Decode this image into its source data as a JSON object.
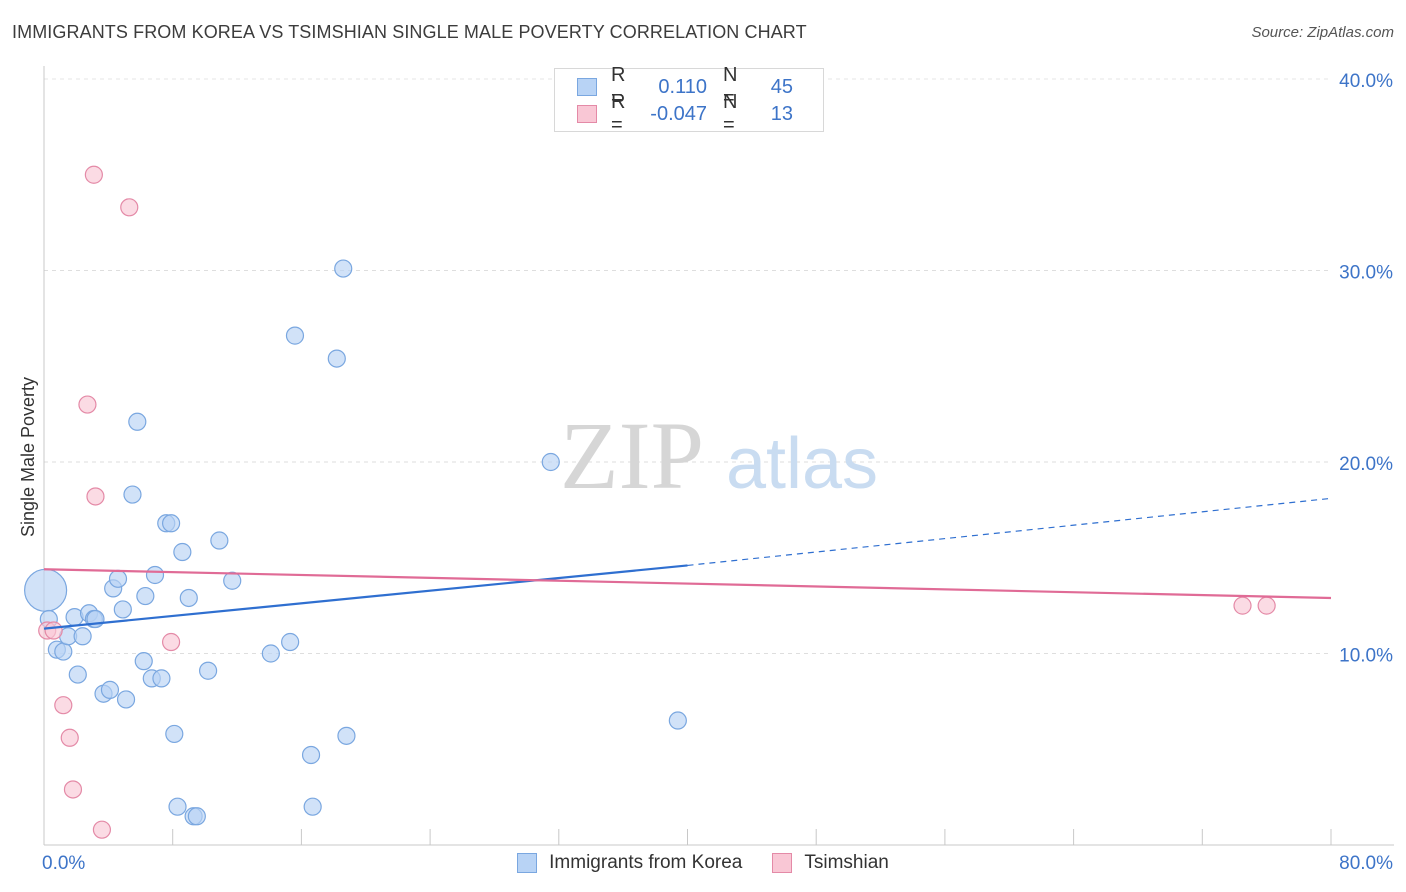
{
  "header": {
    "title": "IMMIGRANTS FROM KOREA VS TSIMSHIAN SINGLE MALE POVERTY CORRELATION CHART",
    "source": "Source: ZipAtlas.com"
  },
  "watermark": {
    "part1": "ZIP",
    "part2": "atlas"
  },
  "legend": {
    "rows": [
      {
        "r_label": "R =",
        "r_value": "0.110",
        "n_label": "N =",
        "n_value": "45",
        "color": "#b8d3f5",
        "border": "#7aa7e0"
      },
      {
        "r_label": "R =",
        "r_value": "-0.047",
        "n_label": "N =",
        "n_value": "13",
        "color": "#f9c7d5",
        "border": "#e48aa7"
      }
    ]
  },
  "chart_data": {
    "type": "scatter",
    "title": "IMMIGRANTS FROM KOREA VS TSIMSHIAN SINGLE MALE POVERTY CORRELATION CHART",
    "xlabel": "",
    "ylabel": "Single Male Poverty",
    "xlim": [
      0,
      80
    ],
    "ylim": [
      0,
      40
    ],
    "x_tick_labels": [
      "0.0%",
      "80.0%"
    ],
    "y_ticks": [
      10,
      20,
      30,
      40
    ],
    "y_tick_labels": [
      "10.0%",
      "20.0%",
      "30.0%",
      "40.0%"
    ],
    "grid": true,
    "series": [
      {
        "name": "Immigrants from Korea",
        "color": "#b8d3f5",
        "stroke": "#7aa7e0",
        "line_color": "#2f6fd0",
        "trend": {
          "x_start": 0,
          "y_start": 11.3,
          "x_solid_end": 40,
          "y_solid_end": 14.6,
          "x_end": 80,
          "y_end": 18.1
        },
        "points": [
          {
            "x": 0.1,
            "y": 13.3,
            "big": true
          },
          {
            "x": 0.3,
            "y": 11.8
          },
          {
            "x": 0.8,
            "y": 10.2
          },
          {
            "x": 1.2,
            "y": 10.1
          },
          {
            "x": 1.5,
            "y": 10.9
          },
          {
            "x": 1.9,
            "y": 11.9
          },
          {
            "x": 2.1,
            "y": 8.9
          },
          {
            "x": 2.4,
            "y": 10.9
          },
          {
            "x": 2.8,
            "y": 12.1
          },
          {
            "x": 3.1,
            "y": 11.8
          },
          {
            "x": 3.2,
            "y": 11.8
          },
          {
            "x": 3.7,
            "y": 7.9
          },
          {
            "x": 4.1,
            "y": 8.1
          },
          {
            "x": 4.3,
            "y": 13.4
          },
          {
            "x": 4.6,
            "y": 13.9
          },
          {
            "x": 4.9,
            "y": 12.3
          },
          {
            "x": 5.1,
            "y": 7.6
          },
          {
            "x": 5.5,
            "y": 18.3
          },
          {
            "x": 5.8,
            "y": 22.1
          },
          {
            "x": 6.2,
            "y": 9.6
          },
          {
            "x": 6.3,
            "y": 13.0
          },
          {
            "x": 6.7,
            "y": 8.7
          },
          {
            "x": 6.9,
            "y": 14.1
          },
          {
            "x": 7.3,
            "y": 8.7
          },
          {
            "x": 7.6,
            "y": 16.8
          },
          {
            "x": 7.9,
            "y": 16.8
          },
          {
            "x": 8.1,
            "y": 5.8
          },
          {
            "x": 8.3,
            "y": 2.0
          },
          {
            "x": 8.6,
            "y": 15.3
          },
          {
            "x": 9.0,
            "y": 12.9
          },
          {
            "x": 9.3,
            "y": 1.5
          },
          {
            "x": 9.5,
            "y": 1.5
          },
          {
            "x": 10.2,
            "y": 9.1
          },
          {
            "x": 10.9,
            "y": 15.9
          },
          {
            "x": 11.7,
            "y": 13.8
          },
          {
            "x": 14.1,
            "y": 10.0
          },
          {
            "x": 15.3,
            "y": 10.6
          },
          {
            "x": 15.6,
            "y": 26.6
          },
          {
            "x": 16.6,
            "y": 4.7
          },
          {
            "x": 16.7,
            "y": 2.0
          },
          {
            "x": 18.2,
            "y": 25.4
          },
          {
            "x": 18.6,
            "y": 30.1
          },
          {
            "x": 18.8,
            "y": 5.7
          },
          {
            "x": 31.5,
            "y": 20.0
          },
          {
            "x": 39.4,
            "y": 6.5
          }
        ]
      },
      {
        "name": "Tsimshian",
        "color": "#f9c7d5",
        "stroke": "#e48aa7",
        "line_color": "#e06b96",
        "trend": {
          "x_start": 0,
          "y_start": 14.4,
          "x_end": 80,
          "y_end": 12.9
        },
        "points": [
          {
            "x": 0.2,
            "y": 11.2
          },
          {
            "x": 0.6,
            "y": 11.2
          },
          {
            "x": 1.2,
            "y": 7.3
          },
          {
            "x": 1.6,
            "y": 5.6
          },
          {
            "x": 1.8,
            "y": 2.9
          },
          {
            "x": 2.7,
            "y": 23.0
          },
          {
            "x": 3.1,
            "y": 35.0
          },
          {
            "x": 3.2,
            "y": 18.2
          },
          {
            "x": 3.6,
            "y": 0.8
          },
          {
            "x": 5.3,
            "y": 33.3
          },
          {
            "x": 7.9,
            "y": 10.6
          },
          {
            "x": 74.5,
            "y": 12.5
          },
          {
            "x": 76.0,
            "y": 12.5
          }
        ]
      }
    ]
  }
}
